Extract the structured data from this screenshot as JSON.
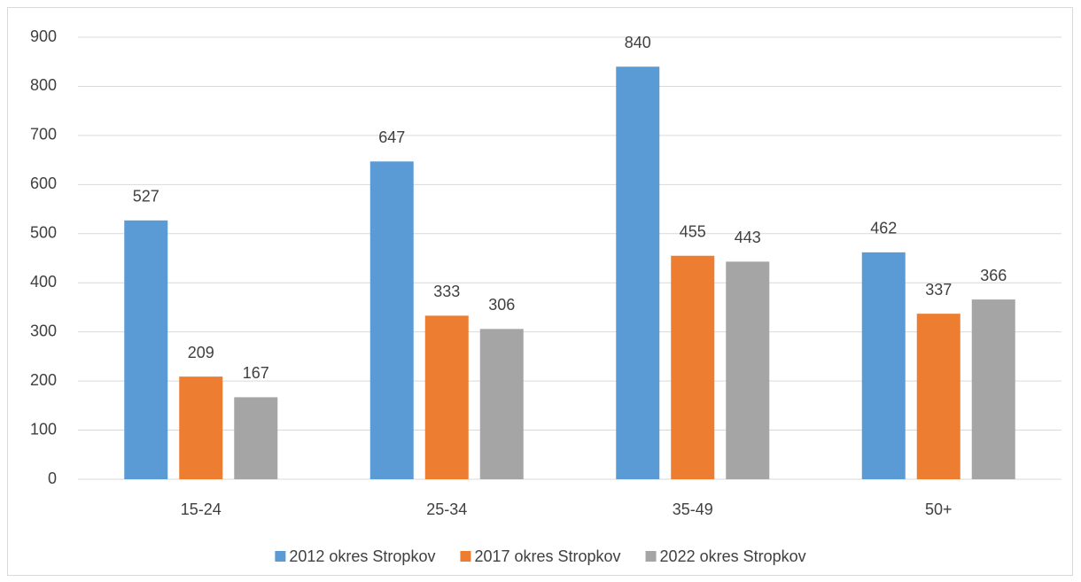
{
  "chart_data": {
    "type": "bar",
    "categories": [
      "15-24",
      "25-34",
      "35-49",
      "50+"
    ],
    "series": [
      {
        "name": "2012 okres Stropkov",
        "color": "#5b9bd5",
        "values": [
          527,
          647,
          840,
          462
        ]
      },
      {
        "name": "2017 okres Stropkov",
        "color": "#ed7d31",
        "values": [
          209,
          333,
          455,
          337
        ]
      },
      {
        "name": "2022 okres Stropkov",
        "color": "#a5a5a5",
        "values": [
          167,
          306,
          443,
          366
        ]
      }
    ],
    "ylim": [
      0,
      900
    ],
    "yticks": [
      0,
      100,
      200,
      300,
      400,
      500,
      600,
      700,
      800,
      900
    ],
    "grid": true,
    "legend": "bottom"
  }
}
